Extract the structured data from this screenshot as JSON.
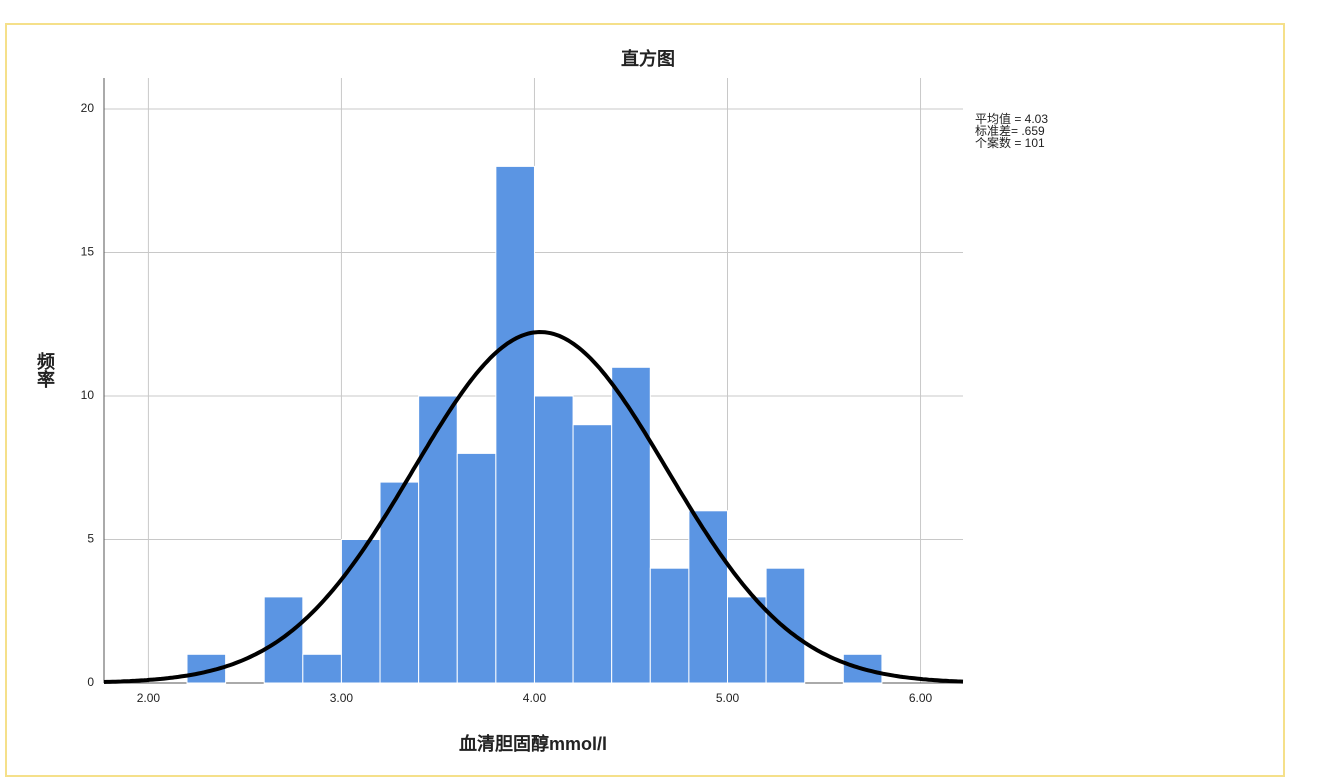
{
  "chart_data": {
    "type": "histogram",
    "title": "直方图",
    "x_label": "血清胆固醇mmol/l",
    "y_label": "频率",
    "bins": [
      2.2,
      2.4,
      2.6,
      2.8,
      3.0,
      3.2,
      3.4,
      3.6,
      3.8,
      4.0,
      4.2,
      4.4,
      4.6,
      4.8,
      5.0,
      5.2,
      5.4,
      5.6,
      5.8
    ],
    "values": [
      1,
      0,
      3,
      1,
      5,
      7,
      10,
      8,
      18,
      10,
      9,
      11,
      4,
      6,
      3,
      4,
      0,
      1
    ],
    "color": "#5b95e3",
    "curve_color": "#000000",
    "stats": [
      {
        "value": 4.03,
        "label": "平均值 = 4.03"
      },
      {
        "value": 0.659,
        "label": "标准差= .659"
      },
      {
        "value": 101,
        "label": "个案数 = 101"
      }
    ],
    "xlim": [
      1.77,
      6.22
    ],
    "ylim": [
      0,
      21.08
    ],
    "xticks": [
      {
        "value": 2,
        "label": "2.00"
      },
      {
        "value": 3,
        "label": "3.00"
      },
      {
        "value": 4,
        "label": "4.00"
      },
      {
        "value": 5,
        "label": "5.00"
      },
      {
        "value": 6,
        "label": "6.00"
      }
    ],
    "yticks": [
      0,
      5,
      10,
      15,
      20
    ],
    "grid": true
  }
}
